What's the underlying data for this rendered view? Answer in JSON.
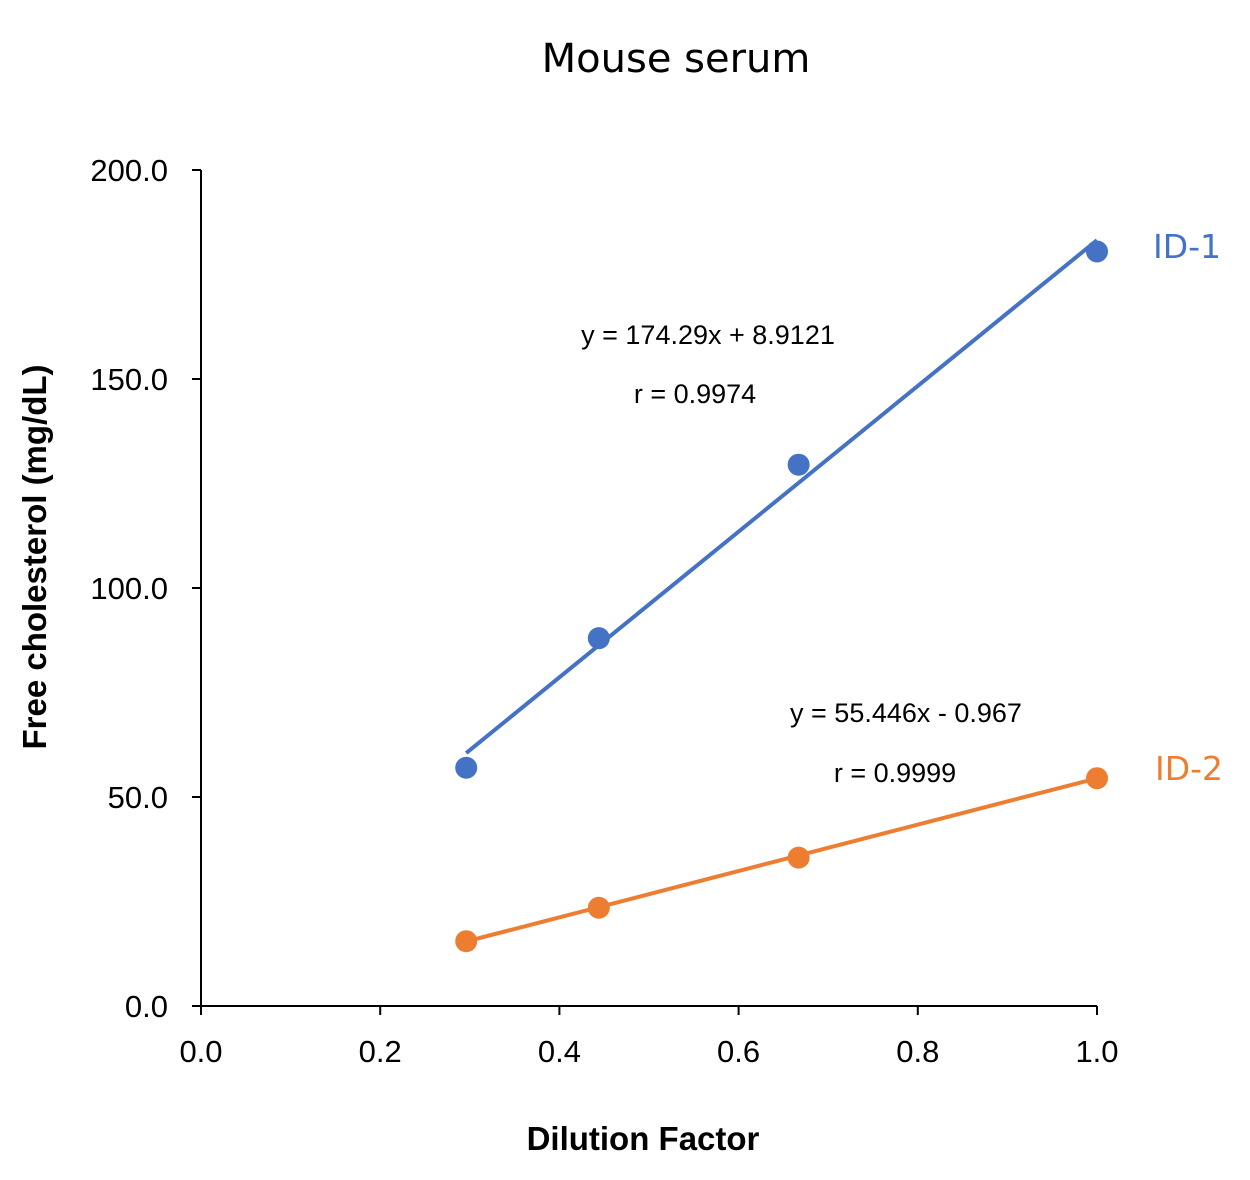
{
  "chart_data": {
    "type": "scatter",
    "title": "Mouse serum",
    "xlabel": "Dilution Factor",
    "ylabel": "Free cholesterol (mg/dL)",
    "xlim": [
      0.0,
      1.0
    ],
    "ylim": [
      0.0,
      200.0
    ],
    "x_ticks": [
      "0.0",
      "0.2",
      "0.4",
      "0.6",
      "0.8",
      "1.0"
    ],
    "y_ticks": [
      "0.0",
      "50.0",
      "100.0",
      "150.0",
      "200.0"
    ],
    "grid": false,
    "legend": "none",
    "series": [
      {
        "name": "ID-1",
        "color": "#4472C4",
        "x": [
          0.296,
          0.444,
          0.667,
          1.0
        ],
        "y": [
          57.0,
          88.0,
          129.5,
          180.5
        ],
        "trendline": {
          "slope": 174.29,
          "intercept": 8.9121,
          "x_range": [
            0.296,
            1.0
          ]
        },
        "equation": "y = 174.29x + 8.9121",
        "r": "r = 0.9974"
      },
      {
        "name": "ID-2",
        "color": "#ED7D31",
        "x": [
          0.296,
          0.444,
          0.667,
          1.0
        ],
        "y": [
          15.5,
          23.5,
          35.5,
          54.5
        ],
        "trendline": {
          "slope": 55.446,
          "intercept": -0.967,
          "x_range": [
            0.296,
            1.0
          ]
        },
        "equation": "y = 55.446x - 0.967",
        "r": "r = 0.9999"
      }
    ]
  }
}
